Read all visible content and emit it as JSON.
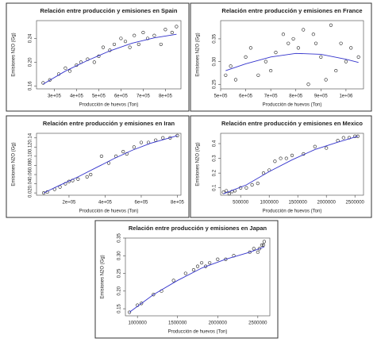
{
  "chart_data": [
    {
      "type": "scatter",
      "title": "Relación entre producción y emisiones en Spain",
      "x_label": "Producción de huevos (Ton)",
      "y_label": "Emisiones N2O (Gg)",
      "xlim": [
        220000,
        870000
      ],
      "ylim": [
        0.155,
        0.27
      ],
      "xticks": [
        {
          "value": 300000,
          "label": "3e+05"
        },
        {
          "value": 400000,
          "label": "4e+05"
        },
        {
          "value": 500000,
          "label": "5e+05"
        },
        {
          "value": 600000,
          "label": "6e+05"
        },
        {
          "value": 700000,
          "label": "7e+05"
        },
        {
          "value": 800000,
          "label": "8e+05"
        }
      ],
      "yticks": [
        0.16,
        {
          "value": 0.2,
          "label": "0.20"
        },
        0.24
      ],
      "x": [
        250000,
        280000,
        320000,
        350000,
        370000,
        400000,
        420000,
        450000,
        480000,
        500000,
        520000,
        550000,
        570000,
        600000,
        620000,
        640000,
        660000,
        680000,
        700000,
        720000,
        750000,
        780000,
        800000,
        830000,
        850000
      ],
      "values": [
        0.165,
        0.17,
        0.18,
        0.19,
        0.185,
        0.195,
        0.2,
        0.205,
        0.2,
        0.21,
        0.225,
        0.22,
        0.23,
        0.24,
        0.235,
        0.225,
        0.245,
        0.23,
        0.25,
        0.24,
        0.245,
        0.23,
        0.255,
        0.25,
        0.26
      ],
      "fit": {
        "x": [
          250000,
          350000,
          450000,
          550000,
          650000,
          750000,
          850000
        ],
        "values": [
          0.163,
          0.185,
          0.203,
          0.219,
          0.232,
          0.241,
          0.247
        ]
      },
      "point_color": "#222222",
      "line_color": "#3333cc"
    },
    {
      "type": "scatter",
      "title": "Relación entre producción y emisiones en France",
      "x_label": "Producción de huevos (Ton)",
      "y_label": "Emisiones N2O (Gg)",
      "xlim": [
        500000,
        1070000
      ],
      "ylim": [
        0.24,
        0.39
      ],
      "xticks": [
        {
          "value": 500000,
          "label": "5e+05"
        },
        {
          "value": 600000,
          "label": "6e+05"
        },
        {
          "value": 700000,
          "label": "7e+05"
        },
        {
          "value": 800000,
          "label": "8e+05"
        },
        {
          "value": 900000,
          "label": "9e+05"
        },
        {
          "value": 1000000,
          "label": "1e+06"
        }
      ],
      "yticks": [
        0.25,
        {
          "value": 0.3,
          "label": "0.30"
        },
        0.35
      ],
      "x": [
        520000,
        540000,
        560000,
        600000,
        620000,
        650000,
        680000,
        700000,
        720000,
        750000,
        770000,
        790000,
        810000,
        830000,
        850000,
        870000,
        880000,
        900000,
        920000,
        940000,
        960000,
        980000,
        1000000,
        1020000,
        1050000
      ],
      "values": [
        0.27,
        0.29,
        0.26,
        0.31,
        0.33,
        0.27,
        0.3,
        0.28,
        0.32,
        0.36,
        0.34,
        0.35,
        0.33,
        0.37,
        0.25,
        0.36,
        0.34,
        0.31,
        0.26,
        0.38,
        0.28,
        0.34,
        0.3,
        0.33,
        0.31
      ],
      "fit": {
        "x": [
          520000,
          600000,
          700000,
          800000,
          900000,
          1000000,
          1050000
        ],
        "values": [
          0.28,
          0.295,
          0.31,
          0.318,
          0.316,
          0.305,
          0.298
        ]
      },
      "point_color": "#222222",
      "line_color": "#3333cc"
    },
    {
      "type": "scatter",
      "title": "Relación entre producción y emisiones en Iran",
      "x_label": "Producción de huevos (Ton)",
      "y_label": "Emisiones N2O (Gg)",
      "xlim": [
        20000,
        820000
      ],
      "ylim": [
        0.015,
        0.15
      ],
      "xticks": [
        {
          "value": 200000,
          "label": "2e+05"
        },
        {
          "value": 400000,
          "label": "4e+05"
        },
        {
          "value": 600000,
          "label": "6e+05"
        },
        {
          "value": 800000,
          "label": "8e+05"
        }
      ],
      "yticks": [
        0.02,
        0.04,
        0.06,
        0.08,
        {
          "value": 0.1,
          "label": "0.10"
        },
        0.12,
        0.14
      ],
      "x": [
        60000,
        80000,
        120000,
        150000,
        180000,
        200000,
        220000,
        250000,
        300000,
        320000,
        380000,
        420000,
        460000,
        500000,
        520000,
        560000,
        600000,
        640000,
        680000,
        720000,
        760000,
        800000
      ],
      "values": [
        0.02,
        0.022,
        0.028,
        0.033,
        0.04,
        0.045,
        0.047,
        0.05,
        0.055,
        0.06,
        0.1,
        0.085,
        0.1,
        0.11,
        0.105,
        0.12,
        0.13,
        0.13,
        0.135,
        0.14,
        0.14,
        0.145
      ],
      "fit": {
        "x": [
          60000,
          150000,
          250000,
          350000,
          450000,
          550000,
          650000,
          800000
        ],
        "values": [
          0.02,
          0.037,
          0.055,
          0.075,
          0.095,
          0.113,
          0.128,
          0.145
        ]
      },
      "point_color": "#222222",
      "line_color": "#3333cc"
    },
    {
      "type": "scatter",
      "title": "Relación entre producción y emisiones en Mexico",
      "x_label": "Producción de huevos (Ton)",
      "y_label": "Emisiones N2O (Gg)",
      "xlim": [
        150000,
        2650000
      ],
      "ylim": [
        0.05,
        0.47
      ],
      "xticks": [
        500000,
        1000000,
        1500000,
        2000000,
        2500000
      ],
      "yticks": [
        0.1,
        0.2,
        0.3,
        0.4
      ],
      "x": [
        200000,
        250000,
        300000,
        350000,
        400000,
        500000,
        600000,
        700000,
        800000,
        900000,
        1000000,
        1100000,
        1200000,
        1300000,
        1400000,
        1600000,
        1800000,
        2000000,
        2200000,
        2300000,
        2400000,
        2500000,
        2550000
      ],
      "values": [
        0.07,
        0.08,
        0.06,
        0.075,
        0.08,
        0.1,
        0.1,
        0.12,
        0.13,
        0.2,
        0.22,
        0.28,
        0.3,
        0.3,
        0.32,
        0.33,
        0.38,
        0.37,
        0.42,
        0.44,
        0.44,
        0.45,
        0.45
      ],
      "fit": {
        "x": [
          200000,
          600000,
          1000000,
          1400000,
          1800000,
          2200000,
          2550000
        ],
        "values": [
          0.06,
          0.12,
          0.21,
          0.29,
          0.36,
          0.41,
          0.45
        ]
      },
      "point_color": "#222222",
      "line_color": "#3333cc"
    },
    {
      "type": "scatter",
      "title": "Relación entre producción y emisiones en Japan",
      "x_label": "Producción de huevos (Ton)",
      "y_label": "Emisiones N2O (Gg)",
      "xlim": [
        850000,
        2650000
      ],
      "ylim": [
        0.13,
        0.35
      ],
      "xticks": [
        1000000,
        1500000,
        2000000,
        2500000
      ],
      "yticks": [
        0.15,
        {
          "value": 0.2,
          "label": "0.20"
        },
        0.25,
        {
          "value": 0.3,
          "label": "0.30"
        },
        0.35
      ],
      "x": [
        900000,
        1000000,
        1050000,
        1200000,
        1300000,
        1450000,
        1600000,
        1700000,
        1750000,
        1800000,
        1850000,
        1900000,
        2000000,
        2100000,
        2200000,
        2400000,
        2450000,
        2500000,
        2520000,
        2550000,
        2570000,
        2580000
      ],
      "values": [
        0.14,
        0.16,
        0.165,
        0.19,
        0.2,
        0.23,
        0.25,
        0.26,
        0.27,
        0.28,
        0.27,
        0.28,
        0.29,
        0.29,
        0.3,
        0.31,
        0.32,
        0.31,
        0.32,
        0.33,
        0.33,
        0.34
      ],
      "fit": {
        "x": [
          900000,
          1200000,
          1500000,
          1800000,
          2100000,
          2400000,
          2580000
        ],
        "values": [
          0.14,
          0.19,
          0.23,
          0.265,
          0.29,
          0.31,
          0.325
        ]
      },
      "point_color": "#222222",
      "line_color": "#3333cc"
    }
  ]
}
